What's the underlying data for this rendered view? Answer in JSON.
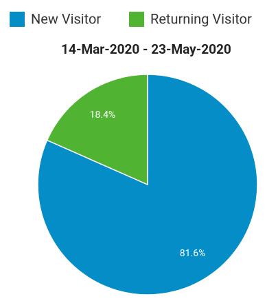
{
  "chart_data": {
    "type": "pie",
    "title": "14-Mar-2020 - 23-May-2020",
    "categories": [
      "New Visitor",
      "Returning Visitor"
    ],
    "values": [
      81.6,
      18.4
    ],
    "value_labels": [
      "81.6%",
      "18.4%"
    ],
    "colors": [
      "#058dc7",
      "#50b432"
    ],
    "legend": "top"
  }
}
